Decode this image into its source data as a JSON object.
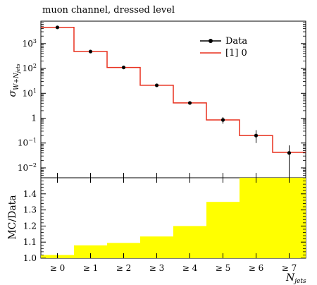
{
  "chart_data": [
    {
      "type": "line",
      "title": "muon channel, dressed level",
      "ylabel": "σ",
      "ylabel_subscript": "W+N",
      "ylabel_subsubscript": "jets",
      "ylog": true,
      "ylim": [
        0.004,
        8000
      ],
      "y_tick_labels": [
        "10^{-2}",
        "10^{-1}",
        "1",
        "10^{1}",
        "10^{2}",
        "10^{3}"
      ],
      "categories": [
        "≥ 0",
        "≥ 1",
        "≥ 2",
        "≥ 3",
        "≥ 4",
        "≥ 5",
        "≥ 6",
        "≥ 7"
      ],
      "legend": {
        "position": "top-right",
        "data_label": "Data",
        "mc_label": "[1] 0"
      },
      "series": [
        {
          "name": "Data",
          "style": "points-with-errorbars",
          "color": "#000000",
          "values": [
            4500,
            480,
            110,
            21,
            4.1,
            0.85,
            0.2,
            0.04
          ],
          "err_low": [
            4100,
            460,
            104,
            20,
            3.6,
            0.6,
            0.1,
            0.005
          ],
          "err_high": [
            5000,
            510,
            116,
            22,
            4.7,
            1.1,
            0.33,
            0.08
          ]
        },
        {
          "name": "[1] 0",
          "style": "step",
          "color": "#e8311f",
          "values": [
            4500,
            480,
            110,
            21,
            4.1,
            0.85,
            0.2,
            0.042
          ]
        }
      ]
    },
    {
      "type": "area",
      "ylabel": "MC/Data",
      "ylim": [
        1.0,
        1.5
      ],
      "y_ticks": [
        1.0,
        1.1,
        1.2,
        1.3,
        1.4
      ],
      "y_tick_labels": [
        "1.0",
        "1.1",
        "1.2",
        "1.3",
        "1.4"
      ],
      "categories": [
        "≥ 0",
        "≥ 1",
        "≥ 2",
        "≥ 3",
        "≥ 4",
        "≥ 5",
        "≥ 6",
        "≥ 7"
      ],
      "xlabel": "N",
      "xlabel_subscript": "jets",
      "band_color": "#ffff00",
      "values": [
        1.02,
        1.08,
        1.095,
        1.135,
        1.2,
        1.35,
        1.5,
        1.5
      ]
    }
  ]
}
